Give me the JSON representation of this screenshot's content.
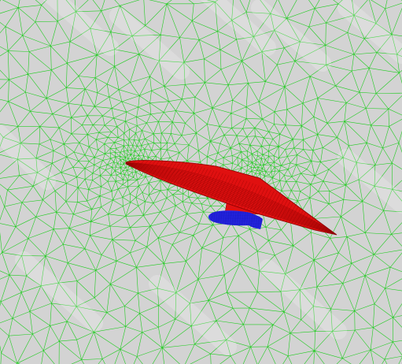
{
  "colors": {
    "page": "#ffffff",
    "background": "#d3d3d3",
    "mesh": "#22cc22",
    "wing": "#e01010",
    "wing_mesh": "#8a0000",
    "store": "#2a2af0",
    "store_mesh": "#0b0b9a",
    "watermark": "#ffffff"
  },
  "scene": {
    "objects": [
      "wing",
      "pylon",
      "store"
    ],
    "mesh_type": "unstructured triangular surface mesh"
  }
}
